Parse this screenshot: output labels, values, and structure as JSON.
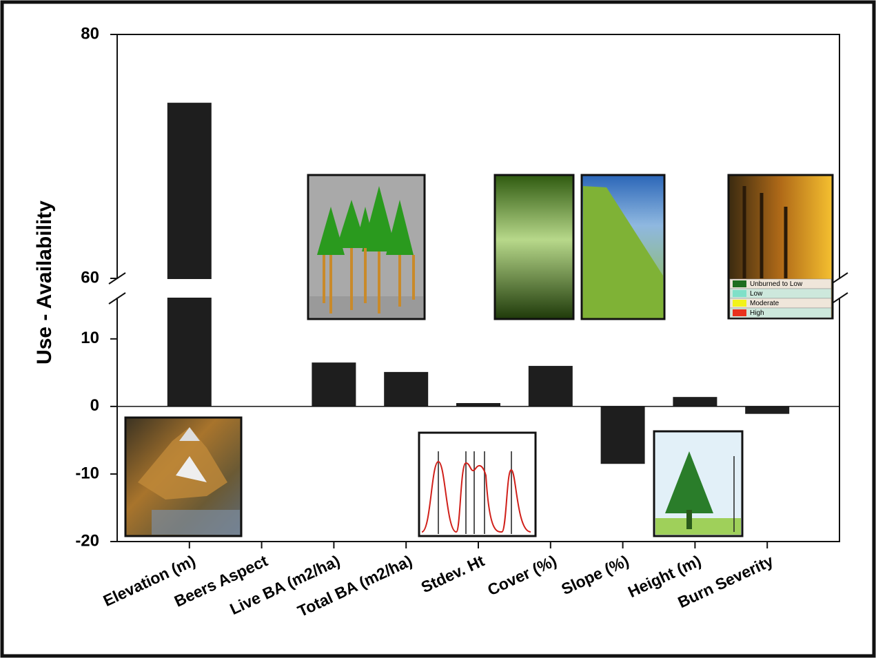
{
  "chart_data": {
    "type": "bar",
    "y_label": "Use - Availability",
    "categories": [
      "Elevation (m)",
      "Beers Aspect",
      "Live BA (m2/ha)",
      "Total BA (m2/ha)",
      "Stdev. Ht",
      "Cover (%)",
      "Slope (%)",
      "Height (m)",
      "Burn Severity"
    ],
    "values": [
      74.4,
      0,
      6.5,
      5.1,
      0.5,
      6.0,
      -8.5,
      1.4,
      -1.1
    ],
    "color": "#1e1e1e",
    "ylim": [
      -20,
      80
    ],
    "axis_break": [
      16,
      60
    ],
    "yticks": [
      -20,
      -10,
      0,
      10,
      60,
      80
    ],
    "legend": [
      {
        "label": "Unburned to Low",
        "color": "#1f6e1f"
      },
      {
        "label": "Low",
        "color": "#7fe0c8"
      },
      {
        "label": "Moderate",
        "color": "#f2f21a"
      },
      {
        "label": "High",
        "color": "#e8321e"
      }
    ]
  }
}
